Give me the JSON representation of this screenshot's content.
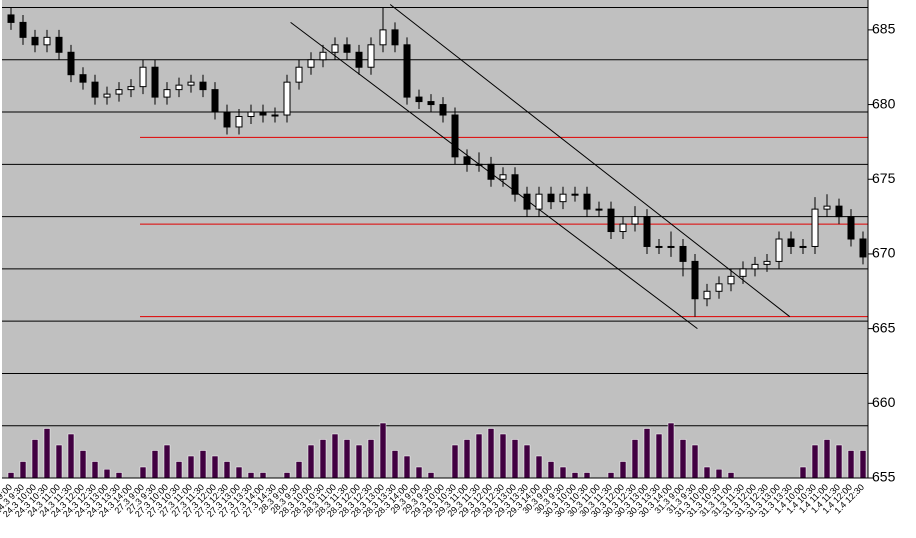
{
  "chart_data": {
    "type": "candlestick",
    "categories": [
      "24.3 9:00",
      "24.3 9:30",
      "24.3 10:00",
      "24.3 10:30",
      "24.3 11:00",
      "24.3 11:30",
      "24.3 12:00",
      "24.3 12:30",
      "24.3 13:00",
      "24.3 13:30",
      "24.3 14:00",
      "27.3 9:00",
      "27.3 9:30",
      "27.3 10:00",
      "27.3 10:30",
      "27.3 11:00",
      "27.3 11:30",
      "27.3 12:00",
      "27.3 12:30",
      "27.3 13:00",
      "27.3 13:30",
      "27.3 14:00",
      "27.3 14:30",
      "28.3 9:00",
      "28.3 9:30",
      "28.3 10:00",
      "28.3 10:30",
      "28.3 11:00",
      "28.3 11:30",
      "28.3 12:00",
      "28.3 12:30",
      "28.3 13:00",
      "28.3 13:30",
      "28.3 14:00",
      "29.3 9:00",
      "29.3 9:30",
      "29.3 10:00",
      "29.3 10:30",
      "29.3 11:00",
      "29.3 11:30",
      "29.3 12:00",
      "29.3 12:30",
      "29.3 13:00",
      "29.3 13:30",
      "29.3 14:00",
      "30.3 9:00",
      "30.3 9:30",
      "30.3 10:00",
      "30.3 10:30",
      "30.3 11:00",
      "30.3 11:30",
      "30.3 12:00",
      "30.3 12:30",
      "30.3 13:00",
      "30.3 13:30",
      "30.3 14:00",
      "31.3 9:00",
      "31.3 9:30",
      "31.3 10:00",
      "31.3 10:30",
      "31.3 11:00",
      "31.3 11:30",
      "31.3 12:00",
      "31.3 12:30",
      "31.3 13:00",
      "31.3 13:30",
      "1.4 10:00",
      "1.4 10:30",
      "1.4 11:00",
      "1.4 11:30",
      "1.4 12:00",
      "1.4 12:30"
    ],
    "open": [
      686,
      685.5,
      684.5,
      684,
      684.5,
      683.5,
      682,
      681.5,
      680.5,
      680.7,
      681,
      681.2,
      682.5,
      680.5,
      681,
      681.3,
      681.5,
      681,
      679.5,
      678.5,
      679.2,
      679.5,
      679.3,
      679.3,
      681.5,
      682.5,
      683,
      683.5,
      684,
      683.5,
      682.5,
      684,
      685,
      684,
      680.5,
      680.2,
      680,
      679.3,
      676.5,
      676,
      676,
      675,
      675.3,
      674,
      673,
      674,
      673.5,
      674,
      674,
      673,
      673,
      671.5,
      672,
      672.5,
      670.5,
      670.5,
      670.5,
      669.5,
      667,
      667.5,
      668,
      668.5,
      669,
      669.3,
      669.5,
      671,
      670.5,
      670.5,
      673,
      673.2,
      672.5,
      671
    ],
    "high": [
      686.5,
      686,
      685,
      685,
      685,
      684,
      682.5,
      682,
      681.2,
      681.5,
      681.7,
      683,
      683,
      681.5,
      681.8,
      682,
      682,
      681.5,
      680,
      679.7,
      680,
      680,
      679.8,
      682,
      683,
      683.5,
      684,
      684.5,
      684.5,
      684,
      684.5,
      686.5,
      685.5,
      684.5,
      681,
      680.7,
      680.5,
      679.8,
      677,
      676.8,
      676.5,
      675.8,
      675.8,
      674.5,
      674.5,
      674.5,
      674.5,
      674.5,
      674.5,
      673.5,
      673.5,
      672.5,
      673.2,
      673,
      671,
      671.5,
      671,
      670,
      668,
      668.5,
      669,
      669.5,
      669.8,
      670,
      671.5,
      671.5,
      671,
      673.8,
      674,
      673.7,
      673,
      671.5
    ],
    "low": [
      685,
      684,
      683.5,
      683.5,
      683,
      681.5,
      681,
      680,
      680,
      680.2,
      680.5,
      680.7,
      680,
      680,
      680.5,
      680.8,
      680.5,
      679,
      678,
      678,
      678.7,
      678.8,
      678.8,
      678.8,
      681,
      682,
      682.5,
      683,
      683,
      682,
      682,
      683.5,
      683.5,
      680,
      679.7,
      679.5,
      678.8,
      676,
      675.5,
      675.5,
      674.5,
      674.5,
      673.5,
      672.5,
      672.5,
      673,
      673,
      673.5,
      672.5,
      672.5,
      671,
      671,
      671.5,
      670,
      670,
      669.8,
      668.5,
      665.8,
      666.5,
      667,
      667.5,
      668,
      668.5,
      668.8,
      669,
      670,
      670,
      670,
      672.5,
      672,
      670.5,
      669.3
    ],
    "close": [
      685.5,
      684.5,
      684,
      684.5,
      683.5,
      682,
      681.5,
      680.5,
      680.7,
      681,
      681.2,
      682.5,
      680.5,
      681,
      681.3,
      681.5,
      681,
      679.5,
      678.5,
      679.2,
      679.5,
      679.3,
      679.3,
      681.5,
      682.5,
      683,
      683.5,
      684,
      683.5,
      682.5,
      684,
      685,
      684,
      680.5,
      680.2,
      680,
      679.3,
      676.5,
      676,
      676,
      675,
      675.3,
      674,
      673,
      674,
      673.5,
      674,
      674,
      673,
      673,
      671.5,
      672,
      672.5,
      670.5,
      670.5,
      670.5,
      669.5,
      667,
      667.5,
      668,
      668.5,
      669,
      669.3,
      669.5,
      671,
      670.5,
      670.5,
      673,
      673.2,
      672.5,
      671,
      669.8
    ],
    "volume": [
      5,
      15,
      35,
      45,
      30,
      40,
      25,
      15,
      8,
      5,
      0,
      10,
      25,
      30,
      15,
      20,
      25,
      20,
      15,
      10,
      5,
      5,
      0,
      5,
      15,
      30,
      35,
      40,
      35,
      30,
      35,
      50,
      25,
      20,
      10,
      5,
      0,
      30,
      35,
      40,
      45,
      40,
      35,
      30,
      20,
      15,
      10,
      5,
      5,
      0,
      5,
      15,
      35,
      45,
      40,
      50,
      35,
      30,
      10,
      8,
      5,
      0,
      0,
      0,
      0,
      0,
      10,
      30,
      35,
      30,
      25,
      25
    ],
    "up_color": "#ffffff",
    "down_color": "#000000",
    "volume_color": "#400040",
    "background": "#c0c0c0",
    "ylim": [
      655,
      687
    ],
    "yticks": [
      655,
      660,
      665,
      670,
      675,
      680,
      685
    ],
    "grid_lines": [
      658.5,
      662,
      665.5,
      669,
      672.5,
      676,
      679.5,
      683,
      686.5
    ],
    "hlines": {
      "color": "#e00000",
      "values": [
        677.8,
        672,
        665.8
      ]
    },
    "trend_lines": [
      {
        "x": [
          23.3,
          57.2
        ],
        "y": [
          685.5,
          665
        ]
      },
      {
        "x": [
          31.6,
          64.9
        ],
        "y": [
          686.7,
          665.8
        ]
      }
    ]
  }
}
